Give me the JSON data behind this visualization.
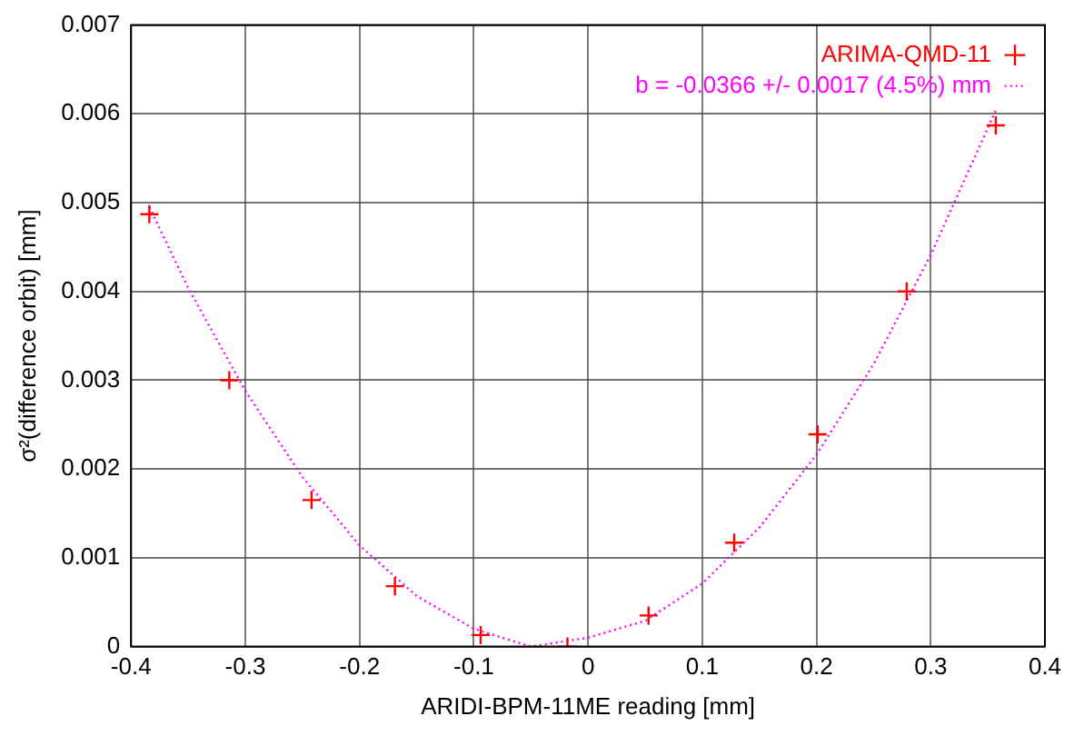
{
  "chart_data": {
    "type": "scatter",
    "xlabel": "ARIDI-BPM-11ME reading [mm]",
    "ylabel": "σ²(difference orbit) [mm]",
    "xlim": [
      -0.4,
      0.4
    ],
    "xticks": [
      -0.4,
      -0.3,
      -0.2,
      -0.1,
      0,
      0.1,
      0.2,
      0.3,
      0.4
    ],
    "ylim": [
      0,
      0.007
    ],
    "yticks": [
      0,
      0.001,
      0.002,
      0.003,
      0.004,
      0.005,
      0.006,
      0.007
    ],
    "grid": true,
    "legend": "top right",
    "series": [
      {
        "name": "ARIMA-QMD-11",
        "type": "scatter",
        "color": "#ff0000",
        "marker": "cross",
        "x": [
          -0.384,
          -0.314,
          -0.242,
          -0.169,
          -0.094,
          -0.018,
          0.053,
          0.128,
          0.201,
          0.279,
          0.357
        ],
        "values": [
          0.00487,
          0.003,
          0.00165,
          0.00068,
          0.00013,
          0,
          0.00035,
          0.00117,
          0.00239,
          0.004,
          0.00587
        ]
      },
      {
        "name": "b = -0.0366 +/- 0.0017 (4.5%) mm",
        "type": "line",
        "color": "#ff00ff",
        "marker": "none",
        "line_style": "dotted",
        "x": [
          -0.384,
          -0.35,
          -0.3,
          -0.25,
          -0.2,
          -0.15,
          -0.1,
          -0.05,
          0,
          0.05,
          0.1,
          0.15,
          0.2,
          0.25,
          0.3,
          0.357
        ],
        "values": [
          0.00495,
          0.00404,
          0.00288,
          0.00191,
          0.00114,
          0.00057,
          0.0002,
          0,
          0.0001,
          0.00029,
          0.00071,
          0.00134,
          0.00216,
          0.00318,
          0.00441,
          0.00604
        ]
      }
    ]
  }
}
